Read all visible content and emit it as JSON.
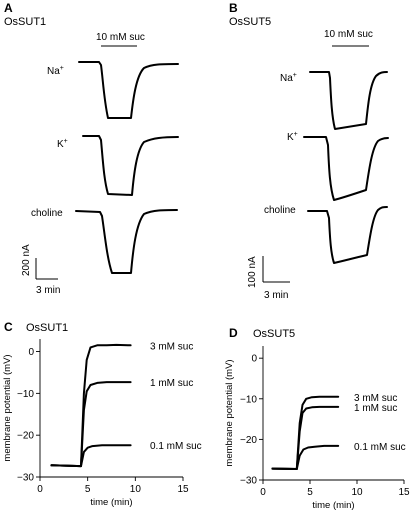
{
  "panels": {
    "A": {
      "letter": "A",
      "title": "OsSUT1",
      "stimulus": "10 mM suc",
      "traces": [
        {
          "label": "Na⁺",
          "label_text": "Na",
          "label_sup": "+"
        },
        {
          "label": "K⁺",
          "label_text": "K",
          "label_sup": "+"
        },
        {
          "label": "choline",
          "label_text": "choline",
          "label_sup": ""
        }
      ],
      "scale_current": "200 nA",
      "scale_time": "3 min"
    },
    "B": {
      "letter": "B",
      "title": "OsSUT5",
      "stimulus": "10 mM suc",
      "traces": [
        {
          "label": "Na⁺",
          "label_text": "Na",
          "label_sup": "+"
        },
        {
          "label": "K⁺",
          "label_text": "K",
          "label_sup": "+"
        },
        {
          "label": "choline",
          "label_text": "choline",
          "label_sup": ""
        }
      ],
      "scale_current": "100 nA",
      "scale_time": "3 min"
    },
    "C": {
      "letter": "C",
      "title": "OsSUT1"
    },
    "D": {
      "letter": "D",
      "title": "OsSUT5"
    }
  },
  "chart_data": [
    {
      "type": "line",
      "panel": "C",
      "title": "OsSUT1",
      "xlabel": "time (min)",
      "ylabel": "membrane potential (mV)",
      "xlim": [
        0,
        15
      ],
      "ylim": [
        -30,
        3
      ],
      "xticks": [
        0,
        5,
        10,
        15
      ],
      "yticks": [
        0,
        -10,
        -20,
        -30
      ],
      "series": [
        {
          "name": "3 mM suc",
          "x": [
            1.2,
            4.3,
            4.6,
            4.9,
            5.3,
            6.0,
            7.0,
            8.0,
            9.5
          ],
          "y": [
            -27.2,
            -27.4,
            -10.0,
            -2.0,
            1.0,
            1.5,
            1.5,
            1.6,
            1.5
          ]
        },
        {
          "name": "1 mM suc",
          "x": [
            1.2,
            4.3,
            4.6,
            4.9,
            5.3,
            6.0,
            7.0,
            8.0,
            9.5
          ],
          "y": [
            -27.2,
            -27.4,
            -14.0,
            -9.5,
            -8.0,
            -7.5,
            -7.3,
            -7.3,
            -7.3
          ]
        },
        {
          "name": "0.1 mM suc",
          "x": [
            1.2,
            4.3,
            4.6,
            5.0,
            5.5,
            6.5,
            7.5,
            9.5
          ],
          "y": [
            -27.2,
            -27.4,
            -24.0,
            -23.0,
            -22.6,
            -22.4,
            -22.4,
            -22.4
          ]
        }
      ]
    },
    {
      "type": "line",
      "panel": "D",
      "title": "OsSUT5",
      "xlabel": "time (min)",
      "ylabel": "membrane potential (mV)",
      "xlim": [
        0,
        15
      ],
      "ylim": [
        -30,
        3
      ],
      "xticks": [
        0,
        5,
        10,
        15
      ],
      "yticks": [
        0,
        -10,
        -20,
        -30
      ],
      "series": [
        {
          "name": "3 mM suc",
          "x": [
            1.0,
            3.6,
            3.9,
            4.2,
            4.6,
            5.2,
            6.0,
            8.0
          ],
          "y": [
            -27.2,
            -27.3,
            -16.0,
            -11.5,
            -10.0,
            -9.6,
            -9.5,
            -9.5
          ]
        },
        {
          "name": "1 mM suc",
          "x": [
            1.0,
            3.6,
            3.9,
            4.2,
            4.6,
            5.2,
            6.0,
            8.0
          ],
          "y": [
            -27.2,
            -27.3,
            -18.0,
            -13.5,
            -12.4,
            -12.1,
            -12.0,
            -12.0
          ]
        },
        {
          "name": "0.1 mM suc",
          "x": [
            1.0,
            3.6,
            3.9,
            4.3,
            4.8,
            5.5,
            6.5,
            8.0
          ],
          "y": [
            -27.2,
            -27.3,
            -24.0,
            -22.5,
            -22.0,
            -21.8,
            -21.6,
            -21.6
          ]
        }
      ]
    }
  ]
}
